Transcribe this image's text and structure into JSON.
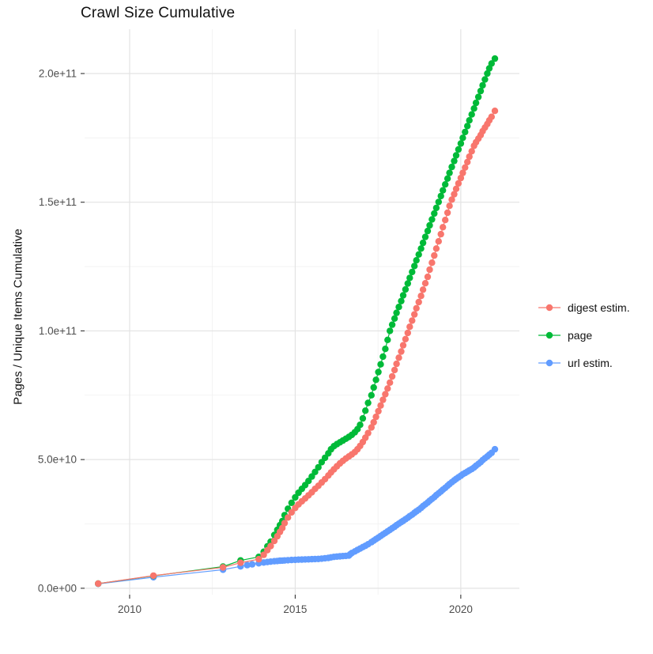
{
  "chart_data": {
    "type": "scatter",
    "title": "Crawl Size Cumulative",
    "xlabel": "",
    "ylabel": "Pages / Unique Items Cumulative",
    "legend_position": "right",
    "grid": true,
    "xlim": [
      2008.64,
      2021.77
    ],
    "ylim_e9": [
      -2.5,
      217.2
    ],
    "x_major_ticks": [
      2010,
      2015,
      2020
    ],
    "x_tick_labels": [
      "2010",
      "2015",
      "2020"
    ],
    "x_minor_ticks": [
      2012.5,
      2017.5
    ],
    "y_major_ticks_e9": [
      0,
      50,
      100,
      150,
      200
    ],
    "y_tick_labels": [
      "0.0e+00",
      "5.0e+10",
      "1.0e+11",
      "1.5e+11",
      "2.0e+11"
    ],
    "y_minor_ticks_e9": [
      25,
      75,
      125,
      175
    ],
    "y_unit": "items, values listed in billions (1e9)",
    "series": [
      {
        "name": "digest estim.",
        "color": "#F8766D",
        "points_year_value_e9": [
          [
            2009.05,
            1.8
          ],
          [
            2010.72,
            4.9
          ],
          [
            2012.82,
            8.1
          ],
          [
            2013.35,
            9.9
          ],
          [
            2013.9,
            11.3
          ],
          [
            2014.05,
            13.0
          ],
          [
            2014.16,
            14.8
          ],
          [
            2014.26,
            16.4
          ],
          [
            2014.37,
            18.4
          ],
          [
            2014.46,
            20.2
          ],
          [
            2014.54,
            21.9
          ],
          [
            2014.61,
            23.4
          ],
          [
            2014.68,
            25.3
          ],
          [
            2014.78,
            27.5
          ],
          [
            2014.89,
            29.5
          ],
          [
            2015.0,
            31.2
          ],
          [
            2015.1,
            32.6
          ],
          [
            2015.2,
            33.8
          ],
          [
            2015.3,
            34.9
          ],
          [
            2015.4,
            36.1
          ],
          [
            2015.5,
            37.3
          ],
          [
            2015.6,
            38.6
          ],
          [
            2015.7,
            39.8
          ],
          [
            2015.8,
            41.1
          ],
          [
            2015.9,
            42.4
          ],
          [
            2016.0,
            43.8
          ],
          [
            2016.08,
            45.0
          ],
          [
            2016.17,
            46.2
          ],
          [
            2016.26,
            47.4
          ],
          [
            2016.35,
            48.5
          ],
          [
            2016.44,
            49.5
          ],
          [
            2016.53,
            50.4
          ],
          [
            2016.62,
            51.2
          ],
          [
            2016.71,
            52.0
          ],
          [
            2016.8,
            52.9
          ],
          [
            2016.88,
            54.0
          ],
          [
            2016.96,
            55.3
          ],
          [
            2017.04,
            56.8
          ],
          [
            2017.12,
            58.5
          ],
          [
            2017.2,
            60.3
          ],
          [
            2017.3,
            62.5
          ],
          [
            2017.37,
            64.5
          ],
          [
            2017.44,
            66.6
          ],
          [
            2017.51,
            68.8
          ],
          [
            2017.58,
            71.0
          ],
          [
            2017.65,
            73.2
          ],
          [
            2017.72,
            75.4
          ],
          [
            2017.79,
            77.6
          ],
          [
            2017.86,
            79.9
          ],
          [
            2017.93,
            82.3
          ],
          [
            2018.0,
            84.8
          ],
          [
            2018.06,
            87.2
          ],
          [
            2018.13,
            89.6
          ],
          [
            2018.2,
            92.0
          ],
          [
            2018.26,
            94.4
          ],
          [
            2018.33,
            96.8
          ],
          [
            2018.4,
            99.2
          ],
          [
            2018.46,
            101.6
          ],
          [
            2018.53,
            104.0
          ],
          [
            2018.6,
            106.4
          ],
          [
            2018.66,
            108.8
          ],
          [
            2018.73,
            111.2
          ],
          [
            2018.8,
            113.6
          ],
          [
            2018.86,
            116.0
          ],
          [
            2018.93,
            118.5
          ],
          [
            2019.0,
            121.0
          ],
          [
            2019.06,
            123.8
          ],
          [
            2019.13,
            126.5
          ],
          [
            2019.2,
            129.3
          ],
          [
            2019.26,
            132.0
          ],
          [
            2019.33,
            134.8
          ],
          [
            2019.4,
            137.6
          ],
          [
            2019.46,
            140.3
          ],
          [
            2019.53,
            143.1
          ],
          [
            2019.6,
            145.9
          ],
          [
            2019.66,
            148.6
          ],
          [
            2019.73,
            151.0
          ],
          [
            2019.8,
            153.1
          ],
          [
            2019.86,
            155.2
          ],
          [
            2019.93,
            157.3
          ],
          [
            2020.0,
            159.4
          ],
          [
            2020.06,
            161.4
          ],
          [
            2020.13,
            163.5
          ],
          [
            2020.2,
            165.6
          ],
          [
            2020.26,
            167.7
          ],
          [
            2020.33,
            169.8
          ],
          [
            2020.4,
            171.9
          ],
          [
            2020.46,
            173.3
          ],
          [
            2020.53,
            174.7
          ],
          [
            2020.6,
            176.1
          ],
          [
            2020.66,
            177.6
          ],
          [
            2020.73,
            179.0
          ],
          [
            2020.8,
            180.4
          ],
          [
            2020.86,
            181.8
          ],
          [
            2020.93,
            183.2
          ],
          [
            2021.03,
            185.5
          ]
        ]
      },
      {
        "name": "page",
        "color": "#00BA38",
        "points_year_value_e9": [
          [
            2009.05,
            1.8
          ],
          [
            2010.72,
            4.8
          ],
          [
            2012.82,
            8.4
          ],
          [
            2013.35,
            10.8
          ],
          [
            2013.9,
            12.2
          ],
          [
            2014.05,
            14.2
          ],
          [
            2014.16,
            16.3
          ],
          [
            2014.26,
            18.1
          ],
          [
            2014.37,
            20.7
          ],
          [
            2014.46,
            22.7
          ],
          [
            2014.54,
            24.5
          ],
          [
            2014.61,
            26.1
          ],
          [
            2014.68,
            28.4
          ],
          [
            2014.78,
            30.9
          ],
          [
            2014.89,
            33.2
          ],
          [
            2015.0,
            35.3
          ],
          [
            2015.1,
            37.1
          ],
          [
            2015.2,
            38.6
          ],
          [
            2015.3,
            40.1
          ],
          [
            2015.4,
            41.7
          ],
          [
            2015.5,
            43.4
          ],
          [
            2015.6,
            45.2
          ],
          [
            2015.7,
            47.0
          ],
          [
            2015.8,
            49.0
          ],
          [
            2015.9,
            50.7
          ],
          [
            2016.0,
            52.4
          ],
          [
            2016.08,
            54.0
          ],
          [
            2016.17,
            55.2
          ],
          [
            2016.26,
            56.0
          ],
          [
            2016.35,
            56.7
          ],
          [
            2016.44,
            57.4
          ],
          [
            2016.53,
            58.1
          ],
          [
            2016.62,
            58.8
          ],
          [
            2016.71,
            59.6
          ],
          [
            2016.8,
            60.6
          ],
          [
            2016.88,
            61.8
          ],
          [
            2016.96,
            63.5
          ],
          [
            2017.04,
            66.0
          ],
          [
            2017.12,
            69.0
          ],
          [
            2017.2,
            72.0
          ],
          [
            2017.3,
            75.0
          ],
          [
            2017.37,
            78.0
          ],
          [
            2017.44,
            81.0
          ],
          [
            2017.51,
            84.0
          ],
          [
            2017.58,
            87.0
          ],
          [
            2017.65,
            90.0
          ],
          [
            2017.72,
            93.0
          ],
          [
            2017.79,
            96.5
          ],
          [
            2017.86,
            100.0
          ],
          [
            2017.93,
            102.4
          ],
          [
            2018.0,
            104.8
          ],
          [
            2018.06,
            107.0
          ],
          [
            2018.13,
            109.3
          ],
          [
            2018.2,
            111.6
          ],
          [
            2018.26,
            113.8
          ],
          [
            2018.33,
            116.1
          ],
          [
            2018.4,
            118.4
          ],
          [
            2018.46,
            120.6
          ],
          [
            2018.53,
            122.9
          ],
          [
            2018.6,
            125.2
          ],
          [
            2018.66,
            127.4
          ],
          [
            2018.73,
            129.7
          ],
          [
            2018.8,
            132.0
          ],
          [
            2018.86,
            134.2
          ],
          [
            2018.93,
            136.5
          ],
          [
            2019.0,
            138.8
          ],
          [
            2019.06,
            141.0
          ],
          [
            2019.13,
            143.3
          ],
          [
            2019.2,
            145.6
          ],
          [
            2019.26,
            147.8
          ],
          [
            2019.33,
            150.1
          ],
          [
            2019.4,
            152.4
          ],
          [
            2019.46,
            154.6
          ],
          [
            2019.53,
            156.9
          ],
          [
            2019.6,
            159.2
          ],
          [
            2019.66,
            161.4
          ],
          [
            2019.73,
            163.7
          ],
          [
            2019.8,
            166.0
          ],
          [
            2019.86,
            168.2
          ],
          [
            2019.93,
            170.5
          ],
          [
            2020.0,
            172.8
          ],
          [
            2020.06,
            175.0
          ],
          [
            2020.13,
            177.3
          ],
          [
            2020.2,
            179.6
          ],
          [
            2020.26,
            181.8
          ],
          [
            2020.33,
            184.1
          ],
          [
            2020.4,
            186.4
          ],
          [
            2020.46,
            188.6
          ],
          [
            2020.53,
            190.9
          ],
          [
            2020.6,
            193.2
          ],
          [
            2020.66,
            195.4
          ],
          [
            2020.73,
            197.7
          ],
          [
            2020.8,
            200.0
          ],
          [
            2020.86,
            202.0
          ],
          [
            2020.93,
            203.9
          ],
          [
            2021.03,
            205.8
          ]
        ]
      },
      {
        "name": "url estim.",
        "color": "#619CFF",
        "points_year_value_e9": [
          [
            2009.05,
            1.7
          ],
          [
            2010.72,
            4.3
          ],
          [
            2012.82,
            7.2
          ],
          [
            2013.35,
            8.5
          ],
          [
            2013.55,
            9.0
          ],
          [
            2013.7,
            9.3
          ],
          [
            2013.9,
            9.7
          ],
          [
            2014.05,
            10.0
          ],
          [
            2014.16,
            10.2
          ],
          [
            2014.26,
            10.35
          ],
          [
            2014.37,
            10.5
          ],
          [
            2014.46,
            10.6
          ],
          [
            2014.54,
            10.7
          ],
          [
            2014.61,
            10.75
          ],
          [
            2014.68,
            10.8
          ],
          [
            2014.78,
            10.9
          ],
          [
            2014.89,
            11.0
          ],
          [
            2015.0,
            11.05
          ],
          [
            2015.1,
            11.1
          ],
          [
            2015.2,
            11.15
          ],
          [
            2015.3,
            11.2
          ],
          [
            2015.4,
            11.25
          ],
          [
            2015.5,
            11.3
          ],
          [
            2015.6,
            11.35
          ],
          [
            2015.7,
            11.4
          ],
          [
            2015.8,
            11.5
          ],
          [
            2015.9,
            11.65
          ],
          [
            2016.0,
            11.8
          ],
          [
            2016.08,
            12.0
          ],
          [
            2016.17,
            12.2
          ],
          [
            2016.26,
            12.3
          ],
          [
            2016.35,
            12.4
          ],
          [
            2016.44,
            12.5
          ],
          [
            2016.53,
            12.6
          ],
          [
            2016.62,
            12.7
          ],
          [
            2016.66,
            13.2
          ],
          [
            2016.71,
            13.7
          ],
          [
            2016.8,
            14.3
          ],
          [
            2016.88,
            14.9
          ],
          [
            2016.96,
            15.4
          ],
          [
            2017.04,
            16.0
          ],
          [
            2017.12,
            16.5
          ],
          [
            2017.2,
            17.1
          ],
          [
            2017.3,
            17.9
          ],
          [
            2017.37,
            18.5
          ],
          [
            2017.44,
            19.1
          ],
          [
            2017.51,
            19.7
          ],
          [
            2017.58,
            20.3
          ],
          [
            2017.65,
            20.9
          ],
          [
            2017.72,
            21.5
          ],
          [
            2017.79,
            22.1
          ],
          [
            2017.86,
            22.7
          ],
          [
            2017.93,
            23.3
          ],
          [
            2018.0,
            23.9
          ],
          [
            2018.06,
            24.5
          ],
          [
            2018.13,
            25.1
          ],
          [
            2018.2,
            25.7
          ],
          [
            2018.26,
            26.2
          ],
          [
            2018.33,
            26.8
          ],
          [
            2018.4,
            27.4
          ],
          [
            2018.46,
            28.0
          ],
          [
            2018.53,
            28.6
          ],
          [
            2018.6,
            29.3
          ],
          [
            2018.66,
            29.9
          ],
          [
            2018.73,
            30.5
          ],
          [
            2018.8,
            31.2
          ],
          [
            2018.86,
            31.9
          ],
          [
            2018.93,
            32.6
          ],
          [
            2019.0,
            33.3
          ],
          [
            2019.06,
            34.0
          ],
          [
            2019.13,
            34.7
          ],
          [
            2019.2,
            35.4
          ],
          [
            2019.26,
            36.2
          ],
          [
            2019.33,
            36.9
          ],
          [
            2019.4,
            37.6
          ],
          [
            2019.46,
            38.3
          ],
          [
            2019.53,
            39.0
          ],
          [
            2019.6,
            39.8
          ],
          [
            2019.66,
            40.5
          ],
          [
            2019.73,
            41.2
          ],
          [
            2019.8,
            41.9
          ],
          [
            2019.86,
            42.5
          ],
          [
            2019.93,
            43.1
          ],
          [
            2020.0,
            43.7
          ],
          [
            2020.06,
            44.3
          ],
          [
            2020.13,
            44.8
          ],
          [
            2020.2,
            45.3
          ],
          [
            2020.26,
            45.8
          ],
          [
            2020.33,
            46.3
          ],
          [
            2020.4,
            46.9
          ],
          [
            2020.46,
            47.6
          ],
          [
            2020.53,
            48.3
          ],
          [
            2020.6,
            49.0
          ],
          [
            2020.66,
            49.8
          ],
          [
            2020.73,
            50.5
          ],
          [
            2020.8,
            51.2
          ],
          [
            2020.86,
            51.9
          ],
          [
            2020.93,
            52.6
          ],
          [
            2021.03,
            54.0
          ]
        ]
      }
    ],
    "style": {
      "grid_major_color": "#e3e3e3",
      "grid_minor_color": "#f0f0f0",
      "tick_mark_color": "#333333",
      "tick_label_color": "#4d4d4d",
      "background_color": "#ffffff",
      "point_radius_px": 4.2
    }
  }
}
